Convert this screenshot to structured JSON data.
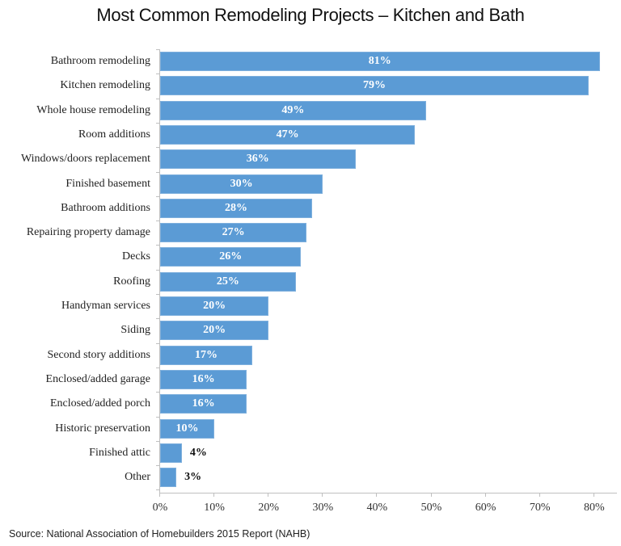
{
  "title": "Most Common Remodeling Projects – Kitchen and Bath",
  "source": "Source: National Association of Homebuilders 2015 Report (NAHB)",
  "colors": {
    "bar": "#5b9bd5",
    "axis": "#bfbfbf",
    "label_inside": "#ffffff",
    "label_outside": "#111111"
  },
  "chart_data": {
    "type": "bar",
    "orientation": "horizontal",
    "title": "Most Common Remodeling Projects – Kitchen and Bath",
    "xlabel": "",
    "ylabel": "",
    "xlim": [
      0,
      85
    ],
    "x_ticks": [
      "0%",
      "10%",
      "20%",
      "30%",
      "40%",
      "50%",
      "60%",
      "70%",
      "80%"
    ],
    "grid": false,
    "legend": null,
    "categories": [
      "Bathroom remodeling",
      "Kitchen remodeling",
      "Whole house remodeling",
      "Room additions",
      "Windows/doors replacement",
      "Finished basement",
      "Bathroom additions",
      "Repairing property damage",
      "Decks",
      "Roofing",
      "Handyman services",
      "Siding",
      "Second story additions",
      "Enclosed/added garage",
      "Enclosed/added porch",
      "Historic preservation",
      "Finished attic",
      "Other"
    ],
    "values": [
      81,
      79,
      49,
      47,
      36,
      30,
      28,
      27,
      26,
      25,
      20,
      20,
      17,
      16,
      16,
      10,
      4,
      3
    ],
    "value_labels": [
      "81%",
      "79%",
      "49%",
      "47%",
      "36%",
      "30%",
      "28%",
      "27%",
      "26%",
      "25%",
      "20%",
      "20%",
      "17%",
      "16%",
      "16%",
      "10%",
      "4%",
      "3%"
    ],
    "annotations": [
      "Source: National Association of Homebuilders 2015 Report (NAHB)"
    ]
  }
}
